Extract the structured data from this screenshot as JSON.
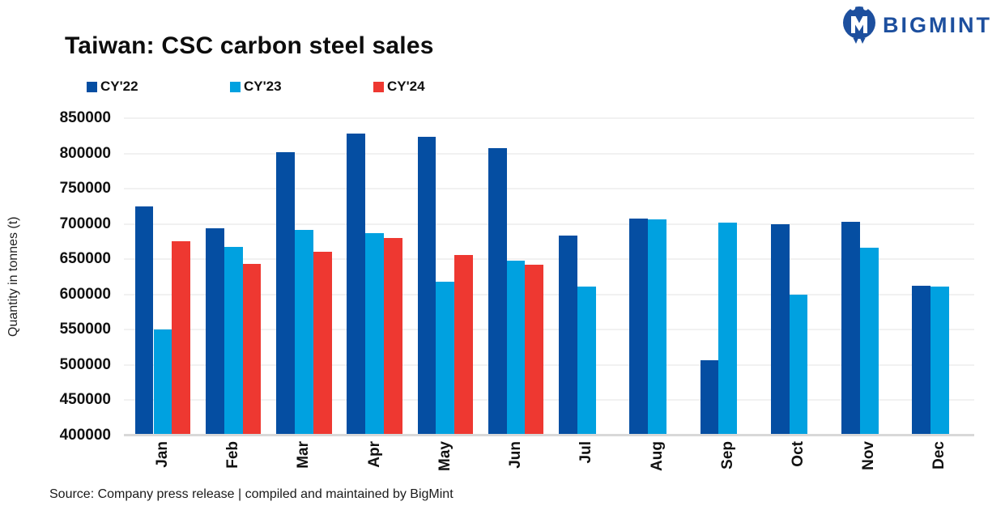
{
  "header": {
    "title": "Taiwan: CSC carbon steel sales",
    "logo_text": "BIGMINT",
    "logo_color": "#1d4f9e"
  },
  "chart_data": {
    "type": "bar",
    "title": "Taiwan: CSC carbon steel sales",
    "categories": [
      "Jan",
      "Feb",
      "Mar",
      "Apr",
      "May",
      "Jun",
      "Jul",
      "Aug",
      "Sep",
      "Oct",
      "Nov",
      "Dec"
    ],
    "series": [
      {
        "name": "CY'22",
        "color": "#054ea2",
        "values": [
          725000,
          694000,
          802000,
          828000,
          824000,
          808000,
          684000,
          708000,
          507000,
          700000,
          703000,
          612000
        ]
      },
      {
        "name": "CY'23",
        "color": "#00a1e0",
        "values": [
          550000,
          668000,
          692000,
          687000,
          618000,
          648000,
          611000,
          707000,
          702000,
          600000,
          666000,
          611000
        ]
      },
      {
        "name": "CY'24",
        "color": "#ee3831",
        "values": [
          675000,
          643000,
          661000,
          680000,
          656000,
          642000,
          null,
          null,
          null,
          null,
          null,
          null
        ]
      }
    ],
    "xlabel": "",
    "ylabel": "Quantity in tonnes (t)",
    "ylim": [
      400000,
      850000
    ],
    "ytick_step": 50000,
    "grid": true,
    "legend_position": "top"
  },
  "footer": {
    "source": "Source: Company press release | compiled and maintained by BigMint"
  }
}
